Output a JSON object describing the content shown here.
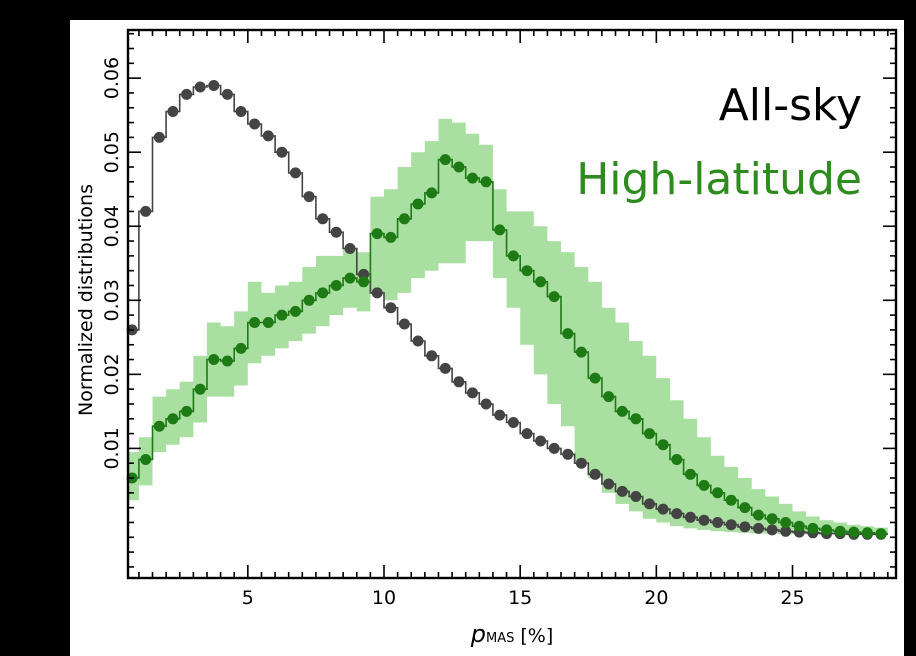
{
  "chart_data": {
    "type": "line",
    "xlabel": "p_MAS [%]",
    "xlabel_main": "p",
    "xlabel_sub": "MAS",
    "xlabel_unit": "[%]",
    "ylabel": "Normalized distributions",
    "xlim": [
      0.6,
      28.8
    ],
    "ylim": [
      -0.0075,
      0.0665
    ],
    "x_ticks": [
      5,
      10,
      15,
      20,
      25
    ],
    "x_tick_labels": [
      "5",
      "10",
      "15",
      "20",
      "25"
    ],
    "y_ticks": [
      0.01,
      0.02,
      0.03,
      0.04,
      0.05,
      0.06
    ],
    "y_tick_labels": [
      "0.01",
      "0.02",
      "0.03",
      "0.04",
      "0.05",
      "0.06"
    ],
    "grid": false,
    "legend_position": "top-right",
    "colors": {
      "all_sky": "#444444",
      "high_latitude": "#1e7a14",
      "band": "#a9dfa0",
      "legend_all_sky": "#000000",
      "legend_high_latitude": "#2e8b1e"
    },
    "series": [
      {
        "name": "All-sky",
        "x": [
          0.75,
          1.25,
          1.75,
          2.25,
          2.75,
          3.25,
          3.75,
          4.25,
          4.75,
          5.25,
          5.75,
          6.25,
          6.75,
          7.25,
          7.75,
          8.25,
          8.75,
          9.25,
          9.75,
          10.25,
          10.75,
          11.25,
          11.75,
          12.25,
          12.75,
          13.25,
          13.75,
          14.25,
          14.75,
          15.25,
          15.75,
          16.25,
          16.75,
          17.25,
          17.75,
          18.25,
          18.75,
          19.25,
          19.75,
          20.25,
          20.75,
          21.25,
          21.75,
          22.25,
          22.75,
          23.25,
          23.75,
          24.25,
          24.75,
          25.25,
          25.75,
          26.25,
          26.75,
          27.25,
          27.75,
          28.25
        ],
        "y": [
          0.026,
          0.042,
          0.052,
          0.0555,
          0.0578,
          0.0588,
          0.059,
          0.0578,
          0.0555,
          0.0538,
          0.0522,
          0.05,
          0.0472,
          0.044,
          0.041,
          0.0392,
          0.037,
          0.0335,
          0.031,
          0.029,
          0.0268,
          0.0245,
          0.0225,
          0.0208,
          0.019,
          0.0175,
          0.016,
          0.0145,
          0.0135,
          0.012,
          0.011,
          0.01,
          0.0092,
          0.008,
          0.0065,
          0.0052,
          0.0042,
          0.0035,
          0.0025,
          0.0018,
          0.0012,
          0.0007,
          0.0003,
          0.0,
          -0.0003,
          -0.0006,
          -0.0008,
          -0.001,
          -0.0012,
          -0.0013,
          -0.0014,
          -0.0015,
          -0.0015,
          -0.0016,
          -0.0016,
          -0.0016
        ]
      },
      {
        "name": "High-latitude",
        "x": [
          0.75,
          1.25,
          1.75,
          2.25,
          2.75,
          3.25,
          3.75,
          4.25,
          4.75,
          5.25,
          5.75,
          6.25,
          6.75,
          7.25,
          7.75,
          8.25,
          8.75,
          9.25,
          9.75,
          10.25,
          10.75,
          11.25,
          11.75,
          12.25,
          12.75,
          13.25,
          13.75,
          14.25,
          14.75,
          15.25,
          15.75,
          16.25,
          16.75,
          17.25,
          17.75,
          18.25,
          18.75,
          19.25,
          19.75,
          20.25,
          20.75,
          21.25,
          21.75,
          22.25,
          22.75,
          23.25,
          23.75,
          24.25,
          24.75,
          25.25,
          25.75,
          26.25,
          26.75,
          27.25,
          27.75,
          28.25
        ],
        "y": [
          0.006,
          0.0085,
          0.013,
          0.014,
          0.015,
          0.018,
          0.022,
          0.0218,
          0.0235,
          0.027,
          0.027,
          0.028,
          0.0285,
          0.03,
          0.031,
          0.032,
          0.033,
          0.0325,
          0.039,
          0.0385,
          0.041,
          0.043,
          0.0445,
          0.049,
          0.048,
          0.0465,
          0.046,
          0.0395,
          0.036,
          0.034,
          0.0325,
          0.0305,
          0.0255,
          0.023,
          0.0195,
          0.017,
          0.015,
          0.014,
          0.012,
          0.0105,
          0.0085,
          0.0065,
          0.005,
          0.004,
          0.003,
          0.002,
          0.001,
          0.0005,
          0.0,
          -0.0005,
          -0.0008,
          -0.001,
          -0.0012,
          -0.0013,
          -0.0014,
          -0.0015
        ],
        "band_lower": [
          0.003,
          0.005,
          0.0095,
          0.0105,
          0.0115,
          0.0135,
          0.017,
          0.017,
          0.0185,
          0.0215,
          0.0225,
          0.0235,
          0.0245,
          0.0255,
          0.0265,
          0.028,
          0.029,
          0.0285,
          0.031,
          0.03,
          0.031,
          0.033,
          0.034,
          0.035,
          0.035,
          0.038,
          0.038,
          0.033,
          0.029,
          0.024,
          0.02,
          0.016,
          0.013,
          0.008,
          0.006,
          0.004,
          0.0025,
          0.0015,
          0.0005,
          0.0,
          -0.0005,
          -0.0008,
          -0.001,
          -0.0012,
          -0.0013,
          -0.0014,
          -0.0015,
          -0.0015,
          -0.0016,
          -0.0016,
          -0.0016,
          -0.0016,
          -0.0016,
          -0.0016,
          -0.0016,
          -0.0016
        ],
        "band_upper": [
          0.0095,
          0.0115,
          0.017,
          0.018,
          0.019,
          0.0225,
          0.027,
          0.0265,
          0.0285,
          0.0325,
          0.031,
          0.032,
          0.0325,
          0.0345,
          0.036,
          0.036,
          0.037,
          0.0365,
          0.044,
          0.045,
          0.048,
          0.05,
          0.0515,
          0.0545,
          0.054,
          0.0525,
          0.051,
          0.045,
          0.042,
          0.042,
          0.04,
          0.038,
          0.0365,
          0.0345,
          0.0325,
          0.029,
          0.027,
          0.0245,
          0.0225,
          0.0195,
          0.0165,
          0.014,
          0.0115,
          0.009,
          0.0075,
          0.006,
          0.0045,
          0.0035,
          0.0025,
          0.0015,
          0.0008,
          0.0003,
          0.0,
          -0.0003,
          -0.0005,
          -0.0007
        ]
      }
    ]
  }
}
